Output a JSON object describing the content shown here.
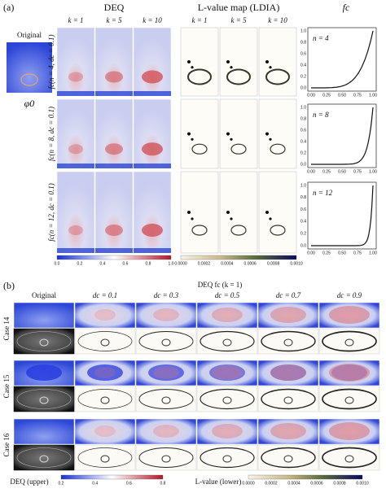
{
  "panel_a": {
    "label": "(a)",
    "original": {
      "title": "Original",
      "symbol": "φ0"
    },
    "row_labels": [
      "fc(n = 4, dc = 0.1)",
      "fc(n = 8, dc = 0.1)",
      "fc(n = 12, dc = 0.1)"
    ],
    "deq": {
      "title": "DEQ",
      "k_labels": [
        "k = 1",
        "k = 5",
        "k = 10"
      ],
      "colorbar_ticks": [
        "0.0",
        "0.2",
        "0.4",
        "0.6",
        "0.8",
        "1.0"
      ]
    },
    "lvalue": {
      "title": "L-value map (LDIA)",
      "k_labels": [
        "k = 1",
        "k = 5",
        "k = 10"
      ],
      "colorbar_ticks": [
        "0.0000",
        "0.0002",
        "0.0004",
        "0.0006",
        "0.0008",
        "0.0010"
      ]
    },
    "fc": {
      "title": "fc",
      "plots": [
        {
          "label": "n = 4"
        },
        {
          "label": "n = 8"
        },
        {
          "label": "n = 12"
        }
      ],
      "yticks": [
        "0.0",
        "0.2",
        "0.4",
        "0.6",
        "0.8",
        "1.0"
      ],
      "xticks": [
        "0.00",
        "0.25",
        "0.50",
        "0.75",
        "1.00"
      ]
    }
  },
  "panel_b": {
    "label": "(b)",
    "title": "DEQ fc (k = 1)",
    "column_headers": [
      "Original",
      "dc = 0.1",
      "dc = 0.3",
      "dc = 0.5",
      "dc = 0.7",
      "dc = 0.9"
    ],
    "row_labels": [
      "Case 14",
      "Case 15",
      "Case 16"
    ],
    "deq_colorbar": {
      "label": "DEQ (upper)",
      "ticks": [
        "0.2",
        "0.4",
        "0.6",
        "0.8"
      ]
    },
    "lvalue_colorbar": {
      "label": "L-value (lower)",
      "ticks": [
        "0.0000",
        "0.0002",
        "0.0004",
        "0.0006",
        "0.0008",
        "0.0010"
      ]
    }
  }
}
